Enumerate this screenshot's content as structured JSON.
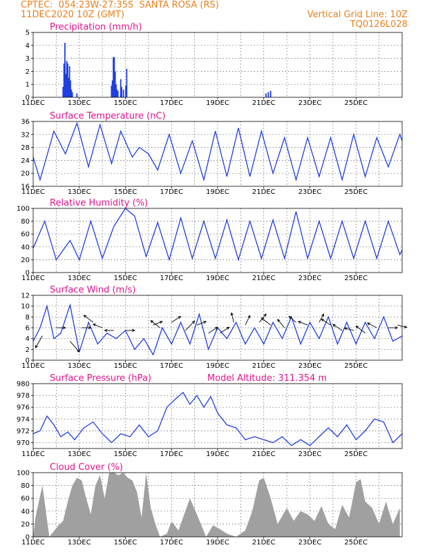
{
  "header": {
    "line1_left": "CPTEC:  054:23W-27:35S  SANTA ROSA (RS)",
    "line2_left": "11DEC2020 10Z (GMT)",
    "line1_right": "Vertical Grid Line: 10Z",
    "line2_right": "TQ0126L028",
    "text_color": "#e8801e"
  },
  "colors": {
    "title": "#e0148c",
    "series": "#1f3fe0",
    "cloud": "#a0a0a0",
    "grid": "#555555"
  },
  "chart_data": [
    {
      "type": "bar",
      "title": "Precipitation (mm/h)",
      "ylim": [
        0,
        5
      ],
      "yticks": [
        0,
        1,
        2,
        3,
        4,
        5
      ],
      "xticks": [
        "11DEC",
        "13DEC",
        "15DEC",
        "17DEC",
        "19DEC",
        "21DEC",
        "23DEC",
        "25DEC"
      ],
      "x_unit": "days since 11DEC",
      "points": [
        [
          1.3,
          0.8
        ],
        [
          1.34,
          2.6
        ],
        [
          1.38,
          4.2
        ],
        [
          1.42,
          1.8
        ],
        [
          1.46,
          2.8
        ],
        [
          1.5,
          2.6
        ],
        [
          1.54,
          1.5
        ],
        [
          1.58,
          2.4
        ],
        [
          1.62,
          1.3
        ],
        [
          1.66,
          0.6
        ],
        [
          1.7,
          0.4
        ],
        [
          1.9,
          0.3
        ],
        [
          3.4,
          0.9
        ],
        [
          3.44,
          1.3
        ],
        [
          3.48,
          3.1
        ],
        [
          3.52,
          3.1
        ],
        [
          3.56,
          2.0
        ],
        [
          3.6,
          1.0
        ],
        [
          3.64,
          0.6
        ],
        [
          3.68,
          0.5
        ],
        [
          3.8,
          1.4
        ],
        [
          3.84,
          0.8
        ],
        [
          3.92,
          0.6
        ],
        [
          4.02,
          0.9
        ],
        [
          4.06,
          2.2
        ],
        [
          10.1,
          0.3
        ],
        [
          10.2,
          0.4
        ],
        [
          10.3,
          0.5
        ]
      ]
    },
    {
      "type": "line",
      "title": "Surface Temperature (nC)",
      "ylim": [
        16,
        36
      ],
      "yticks": [
        16,
        20,
        24,
        28,
        32,
        36
      ],
      "xticks": [
        "11DEC",
        "13DEC",
        "15DEC",
        "17DEC",
        "19DEC",
        "21DEC",
        "23DEC",
        "25DEC"
      ],
      "points": [
        [
          0,
          25
        ],
        [
          0.3,
          18
        ],
        [
          0.9,
          33
        ],
        [
          1.4,
          26
        ],
        [
          1.9,
          35.5
        ],
        [
          2.4,
          22
        ],
        [
          2.9,
          35
        ],
        [
          3.4,
          23
        ],
        [
          3.8,
          33
        ],
        [
          4.3,
          25
        ],
        [
          4.6,
          28
        ],
        [
          5.0,
          26
        ],
        [
          5.4,
          21
        ],
        [
          5.9,
          32
        ],
        [
          6.4,
          20
        ],
        [
          6.9,
          30
        ],
        [
          7.4,
          18
        ],
        [
          7.9,
          33
        ],
        [
          8.4,
          19
        ],
        [
          8.9,
          34
        ],
        [
          9.4,
          19
        ],
        [
          9.9,
          33
        ],
        [
          10.4,
          20
        ],
        [
          10.9,
          31
        ],
        [
          11.4,
          18
        ],
        [
          11.9,
          31
        ],
        [
          12.4,
          19
        ],
        [
          12.9,
          31
        ],
        [
          13.4,
          18
        ],
        [
          13.9,
          32
        ],
        [
          14.4,
          19
        ],
        [
          14.9,
          31
        ],
        [
          15.4,
          22
        ],
        [
          15.9,
          32
        ],
        [
          16.0,
          30
        ]
      ]
    },
    {
      "type": "line",
      "title": "Relative Humidity (%)",
      "ylim": [
        0,
        100
      ],
      "yticks": [
        0,
        20,
        40,
        60,
        80,
        100
      ],
      "xticks": [
        "11DEC",
        "13DEC",
        "15DEC",
        "17DEC",
        "19DEC",
        "21DEC",
        "23DEC",
        "25DEC"
      ],
      "points": [
        [
          0,
          38
        ],
        [
          0.5,
          80
        ],
        [
          1.0,
          20
        ],
        [
          1.6,
          50
        ],
        [
          2.0,
          20
        ],
        [
          2.5,
          80
        ],
        [
          3.0,
          22
        ],
        [
          3.5,
          72
        ],
        [
          4.0,
          100
        ],
        [
          4.4,
          88
        ],
        [
          4.9,
          25
        ],
        [
          5.4,
          78
        ],
        [
          5.9,
          20
        ],
        [
          6.4,
          85
        ],
        [
          6.9,
          22
        ],
        [
          7.4,
          80
        ],
        [
          7.9,
          22
        ],
        [
          8.4,
          82
        ],
        [
          8.9,
          20
        ],
        [
          9.4,
          80
        ],
        [
          9.9,
          22
        ],
        [
          10.4,
          82
        ],
        [
          10.9,
          22
        ],
        [
          11.4,
          95
        ],
        [
          11.9,
          22
        ],
        [
          12.4,
          80
        ],
        [
          12.9,
          22
        ],
        [
          13.4,
          80
        ],
        [
          13.9,
          22
        ],
        [
          14.4,
          80
        ],
        [
          14.9,
          22
        ],
        [
          15.4,
          80
        ],
        [
          15.9,
          28
        ],
        [
          16.0,
          35
        ]
      ]
    },
    {
      "type": "line",
      "title": "Surface Wind (m/s)",
      "ylim": [
        0,
        12
      ],
      "yticks": [
        0,
        2,
        4,
        6,
        8,
        10,
        12
      ],
      "xticks": [
        "11DEC",
        "13DEC",
        "15DEC",
        "17DEC",
        "19DEC",
        "21DEC",
        "23DEC",
        "25DEC"
      ],
      "points": [
        [
          0,
          3.5
        ],
        [
          0.3,
          6
        ],
        [
          0.6,
          10
        ],
        [
          0.9,
          4
        ],
        [
          1.2,
          5
        ],
        [
          1.6,
          10.2
        ],
        [
          2.0,
          1.5
        ],
        [
          2.4,
          7
        ],
        [
          2.8,
          3
        ],
        [
          3.2,
          5
        ],
        [
          3.6,
          4
        ],
        [
          4.0,
          5.5
        ],
        [
          4.4,
          2
        ],
        [
          4.8,
          4
        ],
        [
          5.2,
          1
        ],
        [
          5.6,
          6
        ],
        [
          6.0,
          3
        ],
        [
          6.4,
          7
        ],
        [
          6.8,
          3
        ],
        [
          7.2,
          8.5
        ],
        [
          7.6,
          2
        ],
        [
          8.0,
          6
        ],
        [
          8.4,
          4
        ],
        [
          8.8,
          7
        ],
        [
          9.2,
          3
        ],
        [
          9.6,
          6
        ],
        [
          10.0,
          3
        ],
        [
          10.4,
          7
        ],
        [
          10.8,
          4
        ],
        [
          11.2,
          8
        ],
        [
          11.6,
          3
        ],
        [
          12.0,
          7
        ],
        [
          12.4,
          4
        ],
        [
          12.8,
          8
        ],
        [
          13.2,
          3
        ],
        [
          13.6,
          7
        ],
        [
          14.0,
          3
        ],
        [
          14.4,
          7
        ],
        [
          14.8,
          4
        ],
        [
          15.2,
          8
        ],
        [
          15.6,
          3.5
        ],
        [
          16.0,
          4.5
        ]
      ],
      "vectors": [
        [
          0.4,
          4.5,
          -0.3,
          -1.0
        ],
        [
          1.0,
          6.0,
          0.4,
          0.0
        ],
        [
          1.6,
          3.5,
          0.4,
          -0.9
        ],
        [
          2.1,
          6.0,
          0.4,
          0.0
        ],
        [
          2.6,
          7.0,
          -0.4,
          0.6
        ],
        [
          3.0,
          6.0,
          -0.4,
          0.3
        ],
        [
          3.5,
          5.5,
          -0.4,
          0.0
        ],
        [
          4.0,
          5.5,
          0.4,
          0.0
        ],
        [
          5.2,
          6.5,
          0.4,
          0.3
        ],
        [
          5.5,
          6.0,
          -0.4,
          0.6
        ],
        [
          6.0,
          7.0,
          0.4,
          0.5
        ],
        [
          6.6,
          5.5,
          0.4,
          0.8
        ],
        [
          7.1,
          6.5,
          0.4,
          0.3
        ],
        [
          7.6,
          5.0,
          0.4,
          0.5
        ],
        [
          8.1,
          5.0,
          0.4,
          0.5
        ],
        [
          8.7,
          7.0,
          -0.1,
          0.8
        ],
        [
          9.2,
          6.5,
          0.2,
          0.8
        ],
        [
          9.8,
          7.0,
          0.3,
          0.7
        ],
        [
          10.3,
          6.5,
          -0.4,
          0.6
        ],
        [
          10.9,
          6.0,
          -0.3,
          0.7
        ],
        [
          11.4,
          7.0,
          -0.3,
          0.5
        ],
        [
          11.9,
          6.5,
          -0.4,
          0.3
        ],
        [
          12.4,
          7.0,
          0.2,
          0.7
        ],
        [
          12.9,
          6.5,
          -0.4,
          0.5
        ],
        [
          13.4,
          5.5,
          -0.4,
          0.5
        ],
        [
          13.9,
          5.5,
          -0.4,
          0.2
        ],
        [
          14.4,
          5.0,
          -0.4,
          0.6
        ],
        [
          14.9,
          6.0,
          -0.4,
          0.4
        ],
        [
          15.4,
          6.0,
          0.4,
          0.0
        ],
        [
          15.8,
          6.5,
          0.4,
          -0.2
        ]
      ]
    },
    {
      "type": "line",
      "title": "Surface Pressure (hPa)",
      "annotation": "Model Altitude: 311.354 m",
      "ylim": [
        969,
        980
      ],
      "yticks": [
        970,
        972,
        974,
        976,
        978,
        980
      ],
      "xticks": [
        "11DEC",
        "13DEC",
        "15DEC",
        "17DEC",
        "19DEC",
        "21DEC",
        "23DEC",
        "25DEC"
      ],
      "points": [
        [
          0,
          971.5
        ],
        [
          0.3,
          972
        ],
        [
          0.6,
          974.5
        ],
        [
          0.9,
          973
        ],
        [
          1.2,
          971
        ],
        [
          1.5,
          971.8
        ],
        [
          1.8,
          970.5
        ],
        [
          2.2,
          972.5
        ],
        [
          2.6,
          973.5
        ],
        [
          3.0,
          971.5
        ],
        [
          3.4,
          970
        ],
        [
          3.8,
          971.5
        ],
        [
          4.2,
          971
        ],
        [
          4.6,
          973
        ],
        [
          5.0,
          971
        ],
        [
          5.4,
          972
        ],
        [
          5.8,
          976
        ],
        [
          6.2,
          977.5
        ],
        [
          6.5,
          978.5
        ],
        [
          6.8,
          976.5
        ],
        [
          7.1,
          978
        ],
        [
          7.4,
          976
        ],
        [
          7.7,
          977.8
        ],
        [
          8.0,
          975
        ],
        [
          8.4,
          973
        ],
        [
          8.8,
          972.5
        ],
        [
          9.2,
          970.5
        ],
        [
          9.6,
          971
        ],
        [
          10.0,
          970.5
        ],
        [
          10.4,
          970
        ],
        [
          10.8,
          971
        ],
        [
          11.2,
          969.5
        ],
        [
          11.6,
          970.5
        ],
        [
          12.0,
          969.5
        ],
        [
          12.4,
          971
        ],
        [
          12.8,
          972.5
        ],
        [
          13.2,
          971
        ],
        [
          13.6,
          973
        ],
        [
          14.0,
          970.5
        ],
        [
          14.4,
          972
        ],
        [
          14.8,
          974
        ],
        [
          15.2,
          973.5
        ],
        [
          15.6,
          970
        ],
        [
          16.0,
          971.5
        ]
      ]
    },
    {
      "type": "bar",
      "title": "Cloud Cover (%)",
      "ylim": [
        0,
        100
      ],
      "yticks": [
        0,
        20,
        40,
        60,
        80,
        100
      ],
      "xticks": [
        "11DEC",
        "13DEC",
        "15DEC",
        "17DEC",
        "19DEC",
        "21DEC",
        "23DEC",
        "25DEC"
      ],
      "points": [
        [
          0.0,
          0
        ],
        [
          0.1,
          30
        ],
        [
          0.25,
          55
        ],
        [
          0.4,
          80
        ],
        [
          0.55,
          40
        ],
        [
          0.7,
          0
        ],
        [
          1.1,
          18
        ],
        [
          1.3,
          25
        ],
        [
          1.5,
          55
        ],
        [
          1.7,
          80
        ],
        [
          1.9,
          92
        ],
        [
          2.1,
          88
        ],
        [
          2.3,
          60
        ],
        [
          2.5,
          35
        ],
        [
          2.7,
          80
        ],
        [
          2.9,
          96
        ],
        [
          3.1,
          60
        ],
        [
          3.3,
          100
        ],
        [
          3.5,
          100
        ],
        [
          3.7,
          96
        ],
        [
          3.9,
          100
        ],
        [
          4.1,
          92
        ],
        [
          4.3,
          88
        ],
        [
          4.5,
          70
        ],
        [
          4.7,
          30
        ],
        [
          4.9,
          100
        ],
        [
          5.1,
          45
        ],
        [
          5.3,
          20
        ],
        [
          5.5,
          0
        ],
        [
          5.8,
          5
        ],
        [
          6.0,
          24
        ],
        [
          6.3,
          10
        ],
        [
          6.6,
          40
        ],
        [
          6.8,
          60
        ],
        [
          7.1,
          35
        ],
        [
          7.5,
          0
        ],
        [
          7.8,
          18
        ],
        [
          8.1,
          12
        ],
        [
          8.4,
          5
        ],
        [
          8.8,
          0
        ],
        [
          9.2,
          10
        ],
        [
          9.5,
          40
        ],
        [
          9.8,
          88
        ],
        [
          10.0,
          92
        ],
        [
          10.3,
          60
        ],
        [
          10.6,
          20
        ],
        [
          11.0,
          45
        ],
        [
          11.3,
          25
        ],
        [
          11.6,
          40
        ],
        [
          11.9,
          35
        ],
        [
          12.2,
          25
        ],
        [
          12.5,
          48
        ],
        [
          12.8,
          20
        ],
        [
          13.1,
          12
        ],
        [
          13.4,
          50
        ],
        [
          13.7,
          30
        ],
        [
          14.0,
          85
        ],
        [
          14.2,
          90
        ],
        [
          14.4,
          55
        ],
        [
          14.7,
          45
        ],
        [
          15.0,
          20
        ],
        [
          15.3,
          55
        ],
        [
          15.6,
          20
        ],
        [
          15.9,
          45
        ]
      ]
    }
  ]
}
